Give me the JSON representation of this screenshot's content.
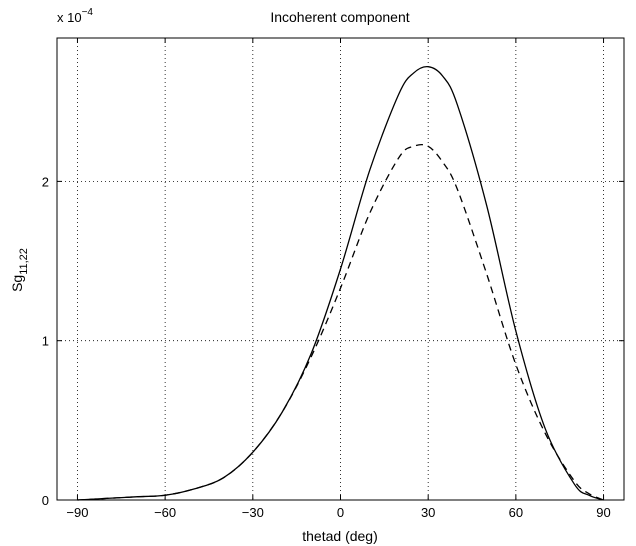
{
  "chart_data": {
    "type": "line",
    "title": "Incoherent component",
    "xlabel": "thetad (deg)",
    "ylabel_main": "Sg",
    "ylabel_sub": "11,22",
    "y_multiplier_base": "x 10",
    "y_multiplier_exp": "−4",
    "xlim": [
      -97,
      97
    ],
    "ylim": [
      0,
      2.9
    ],
    "grid": true,
    "x_ticks": [
      -90,
      -60,
      -30,
      0,
      30,
      60,
      90
    ],
    "x_tick_labels": [
      "−90",
      "−60",
      "−30",
      "0",
      "30",
      "60",
      "90"
    ],
    "y_ticks": [
      0,
      1,
      2
    ],
    "y_tick_labels": [
      "0",
      "1",
      "2"
    ],
    "series": [
      {
        "style": "solid",
        "x": [
          -90,
          -80,
          -70,
          -60,
          -50,
          -40,
          -30,
          -20,
          -10,
          0,
          10,
          20,
          25,
          30,
          35,
          40,
          50,
          60,
          70,
          80,
          85,
          90
        ],
        "y": [
          0.0,
          0.01,
          0.02,
          0.03,
          0.07,
          0.14,
          0.3,
          0.55,
          0.92,
          1.45,
          2.07,
          2.55,
          2.68,
          2.72,
          2.66,
          2.48,
          1.85,
          1.06,
          0.45,
          0.1,
          0.03,
          0.0
        ]
      },
      {
        "style": "dashed",
        "x": [
          -90,
          -80,
          -70,
          -60,
          -50,
          -40,
          -30,
          -20,
          -10,
          0,
          10,
          20,
          25,
          30,
          35,
          40,
          50,
          60,
          70,
          80,
          85,
          90
        ],
        "y": [
          0.0,
          0.01,
          0.02,
          0.03,
          0.07,
          0.14,
          0.3,
          0.55,
          0.9,
          1.33,
          1.8,
          2.15,
          2.22,
          2.22,
          2.12,
          1.95,
          1.42,
          0.85,
          0.42,
          0.12,
          0.04,
          0.0
        ]
      }
    ]
  }
}
